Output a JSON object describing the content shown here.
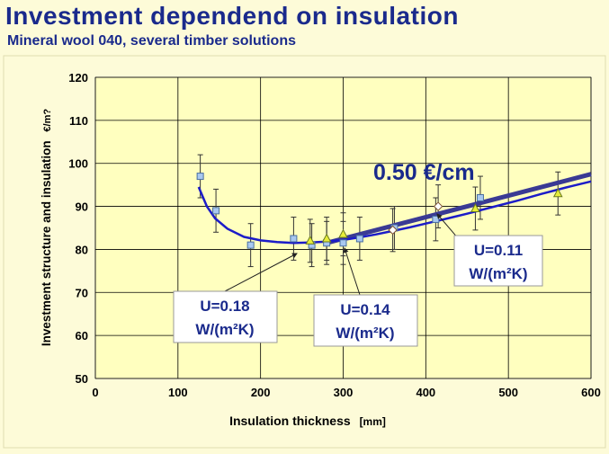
{
  "slide": {
    "title": "Investment dependend on insulation",
    "subtitle": "Mineral wool 040, several timber solutions"
  },
  "colors": {
    "background": "#fdfbd8",
    "plot_area": "#ffffbf",
    "title": "#1a2a8c",
    "fit_curve": "#1c1cc8",
    "trend_line": "#3a3a94",
    "square_marker": "#a8c8f0",
    "triangle_marker": "#e8ee3a",
    "diamond_marker": "#ffffff",
    "callout_text": "#1a2a8c"
  },
  "chart_data": {
    "type": "scatter",
    "xlabel": "Insulation thickness",
    "xlabel_unit": "[mm]",
    "ylabel": "Investment structure and insulation",
    "ylabel_unit": "€/m?",
    "xlim": [
      0,
      600
    ],
    "ylim": [
      50,
      120
    ],
    "xticks": [
      0,
      100,
      200,
      300,
      400,
      500,
      600
    ],
    "yticks": [
      50,
      60,
      70,
      80,
      90,
      100,
      110,
      120
    ],
    "grid": true,
    "series": [
      {
        "marker": "square",
        "points": [
          {
            "x": 127,
            "y": 97,
            "err": 5
          },
          {
            "x": 146,
            "y": 89,
            "err": 5
          },
          {
            "x": 188,
            "y": 81,
            "err": 5
          },
          {
            "x": 240,
            "y": 82.5,
            "err": 5
          },
          {
            "x": 262,
            "y": 81,
            "err": 5
          },
          {
            "x": 280,
            "y": 81.5,
            "err": 5
          },
          {
            "x": 300,
            "y": 81.5,
            "err": 5
          },
          {
            "x": 320,
            "y": 82.5,
            "err": 5
          },
          {
            "x": 362,
            "y": 85,
            "err": 5
          },
          {
            "x": 412,
            "y": 87,
            "err": 5
          },
          {
            "x": 466,
            "y": 92,
            "err": 5
          }
        ]
      },
      {
        "marker": "triangle",
        "points": [
          {
            "x": 260,
            "y": 82,
            "err": 5
          },
          {
            "x": 280,
            "y": 82.5,
            "err": 5
          },
          {
            "x": 300,
            "y": 83.5,
            "err": 5
          },
          {
            "x": 460,
            "y": 89.5,
            "err": 5
          },
          {
            "x": 560,
            "y": 93,
            "err": 5
          }
        ]
      },
      {
        "marker": "diamond",
        "points": [
          {
            "x": 360,
            "y": 84.5,
            "err": 5
          },
          {
            "x": 415,
            "y": 90,
            "err": 5
          }
        ]
      }
    ],
    "fit_curve": [
      [
        125,
        94.5
      ],
      [
        135,
        90
      ],
      [
        145,
        87.2
      ],
      [
        160,
        84.8
      ],
      [
        180,
        82.9
      ],
      [
        200,
        82.1
      ],
      [
        220,
        81.7
      ],
      [
        240,
        81.5
      ],
      [
        260,
        81.6
      ],
      [
        280,
        81.8
      ],
      [
        300,
        82.2
      ],
      [
        320,
        82.8
      ],
      [
        340,
        83.5
      ],
      [
        360,
        84.3
      ],
      [
        380,
        85.1
      ],
      [
        400,
        86.0
      ],
      [
        420,
        86.9
      ],
      [
        450,
        88.3
      ],
      [
        480,
        89.8
      ],
      [
        510,
        91.3
      ],
      [
        540,
        92.9
      ],
      [
        570,
        94.4
      ],
      [
        600,
        95.8
      ]
    ],
    "trend_line": [
      [
        280,
        81.5
      ],
      [
        600,
        97.5
      ]
    ],
    "annotations": {
      "slope": "0.50 €/cm",
      "u018": [
        "U=0.18",
        "W/(m²K)"
      ],
      "u014": [
        "U=0.14",
        "W/(m²K)"
      ],
      "u011": [
        "U=0.11",
        "W/(m²K)"
      ]
    }
  }
}
